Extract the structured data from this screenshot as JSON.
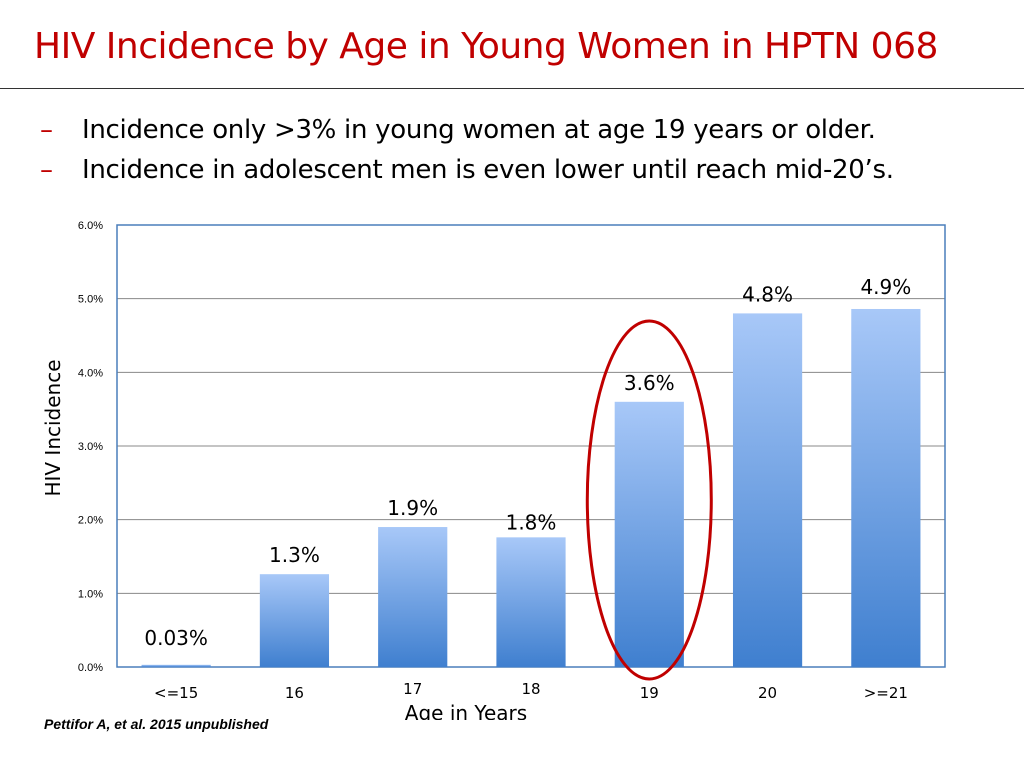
{
  "slide": {
    "title": "HIV Incidence by Age in Young Women in HPTN 068",
    "bullet_marker": "–",
    "bullets": [
      "Incidence only >3% in young women at age 19 years or older.",
      "Incidence in adolescent men is even lower until reach mid-20’s."
    ],
    "source_note": "Pettifor A, et al. 2015 unpublished",
    "colors": {
      "title": "#c00000",
      "highlight_circle": "#c00000",
      "bar_top": "#a8c8f8",
      "bar_bottom": "#3f7fcf",
      "plot_border": "#4a7ebb"
    }
  },
  "chart_data": {
    "type": "bar",
    "categories": [
      "<=15",
      "16",
      "17",
      "18",
      "19",
      "20",
      ">=21"
    ],
    "values": [
      0.03,
      1.26,
      1.9,
      1.76,
      3.6,
      4.8,
      4.86
    ],
    "data_labels": [
      "0.03%",
      "1.3%",
      "1.9%",
      "1.8%",
      "3.6%",
      "4.8%",
      "4.9%"
    ],
    "ylim": [
      0,
      6
    ],
    "yticks": [
      "0.0%",
      "1.0%",
      "2.0%",
      "3.0%",
      "4.0%",
      "5.0%",
      "6.0%"
    ],
    "xlabel": "Age in Years",
    "ylabel": "HIV Incidence",
    "grid": true,
    "highlighted_category": "19"
  }
}
